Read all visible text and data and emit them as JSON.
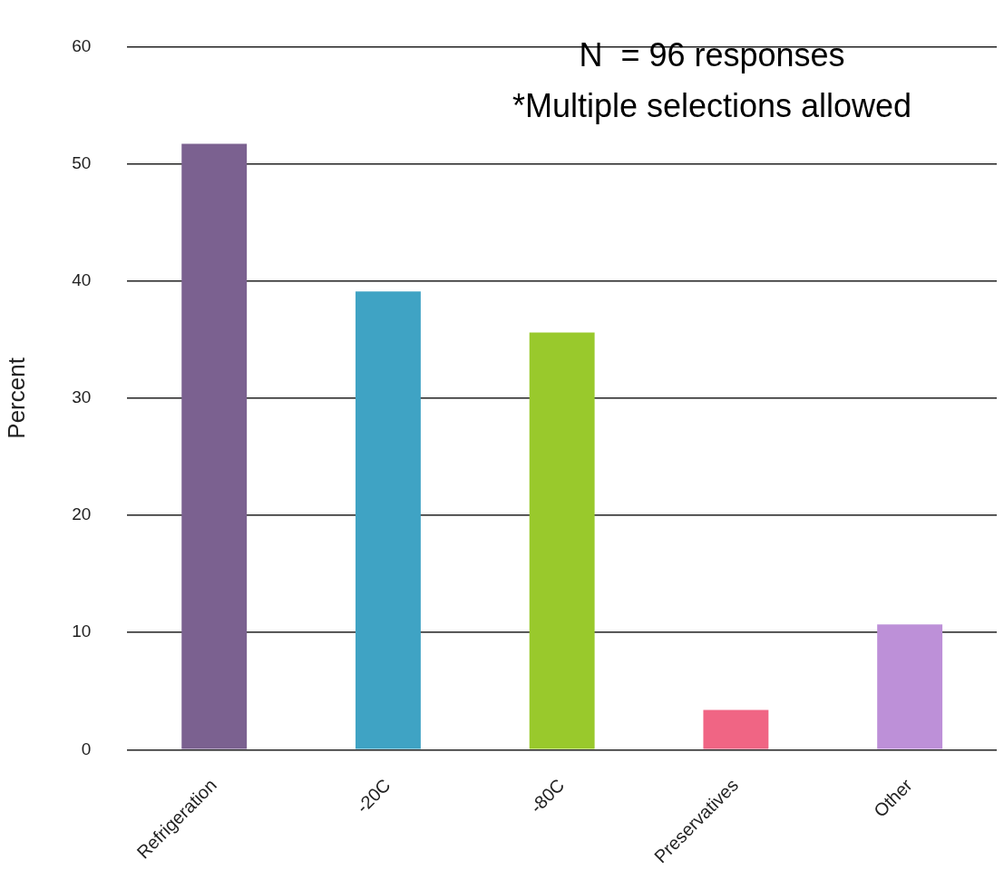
{
  "chart_data": {
    "type": "bar",
    "ylabel": "Percent",
    "categories": [
      "Refrigeration",
      "-20C",
      "-80C",
      "Preservatives",
      "Other"
    ],
    "values": [
      51.7,
      39.1,
      35.6,
      3.4,
      10.7
    ],
    "colors": [
      "#7b6190",
      "#3fa3c4",
      "#99c92c",
      "#f06584",
      "#bd90d8"
    ],
    "ylim": [
      0,
      60
    ],
    "yticks": [
      0,
      10,
      20,
      30,
      40,
      50,
      60
    ],
    "grid": "y",
    "legend": false,
    "annotations": [
      "N  = 96 responses",
      "*Multiple selections allowed"
    ]
  }
}
